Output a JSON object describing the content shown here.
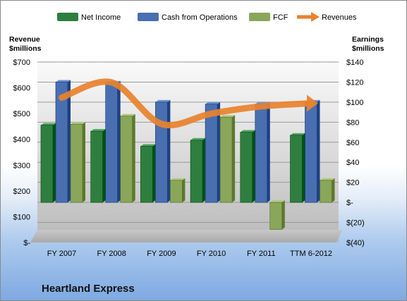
{
  "colors": {
    "net_income": "#2e7f3f",
    "cash_from_operations": "#4a6fb0",
    "fcf": "#8aa65a",
    "revenues": "#e8822e"
  },
  "company_name": "Heartland Express",
  "chart_data": {
    "type": "bar",
    "categories": [
      "FY 2007",
      "FY 2008",
      "FY 2009",
      "FY 2010",
      "FY 2011",
      "TTM 6-2012"
    ],
    "series": [
      {
        "name": "Net Income",
        "axis": "right",
        "values": [
          77,
          71,
          56,
          62,
          70,
          67
        ]
      },
      {
        "name": "Cash from Operations",
        "axis": "right",
        "values": [
          120,
          119,
          100,
          98,
          98,
          100
        ]
      },
      {
        "name": "FCF",
        "axis": "right",
        "values": [
          78,
          86,
          22,
          85,
          -27,
          22
        ]
      },
      {
        "name": "Revenues",
        "axis": "left",
        "type": "line",
        "values": [
          562,
          621,
          460,
          500,
          528,
          540
        ]
      }
    ],
    "legend": [
      "Net Income",
      "Cash from Operations",
      "FCF",
      "Revenues"
    ],
    "legend_position": "top",
    "left_axis": {
      "title_line1": "Revenue",
      "title_line2": "$millions",
      "ylim": [
        0,
        700
      ],
      "ticks": [
        "$-",
        "$100",
        "$200",
        "$300",
        "$400",
        "$500",
        "$600",
        "$700"
      ]
    },
    "right_axis": {
      "title_line1": "Earnings",
      "title_line2": "$millions",
      "ylim": [
        -40,
        140
      ],
      "ticks": [
        "$(40)",
        "$(20)",
        "$-",
        "$20",
        "$40",
        "$60",
        "$80",
        "$100",
        "$120",
        "$140"
      ]
    },
    "grid": true
  }
}
